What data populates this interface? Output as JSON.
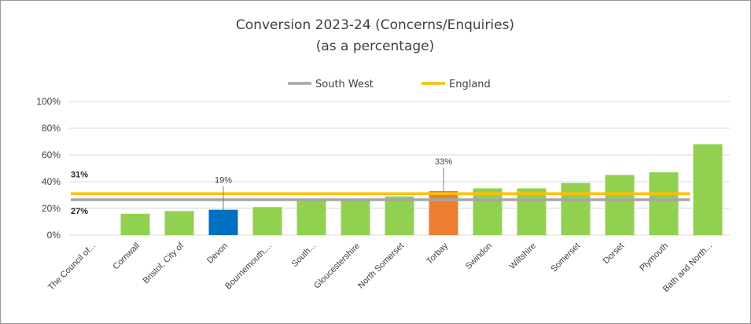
{
  "chart_data": {
    "type": "bar",
    "title_lines": [
      "Conversion 2023-24 (Concerns/Enquiries)",
      "(as a percentage)"
    ],
    "categories": [
      "The Council of...",
      "Cornwall",
      "Bristol, City of",
      "Devon",
      "Bournemouth,...",
      "South...",
      "Gloucestershire",
      "North Somerset",
      "Torbay",
      "Swindon",
      "Wiltshire",
      "Somerset",
      "Dorset",
      "Plymouth",
      "Bath and North..."
    ],
    "values": [
      0,
      16,
      18,
      19,
      21,
      26,
      27,
      29,
      33,
      35,
      35,
      39,
      45,
      47,
      68
    ],
    "bar_colors": [
      "#92d050",
      "#92d050",
      "#92d050",
      "#0070c0",
      "#92d050",
      "#92d050",
      "#92d050",
      "#92d050",
      "#ed7d31",
      "#92d050",
      "#92d050",
      "#92d050",
      "#92d050",
      "#92d050",
      "#92d050"
    ],
    "data_labels": [
      {
        "category": "Devon",
        "text": "19%"
      },
      {
        "category": "Torbay",
        "text": "33%"
      }
    ],
    "reference_lines": [
      {
        "name": "South West",
        "value": 26.5,
        "color": "#a6a6a6",
        "label": "27%"
      },
      {
        "name": "England",
        "value": 31,
        "color": "#ffc000",
        "label": "31%"
      }
    ],
    "yticks": [
      "0%",
      "20%",
      "40%",
      "60%",
      "80%",
      "100%"
    ],
    "ylim": [
      0,
      100
    ],
    "grid": true,
    "legend_position": "top-center"
  }
}
